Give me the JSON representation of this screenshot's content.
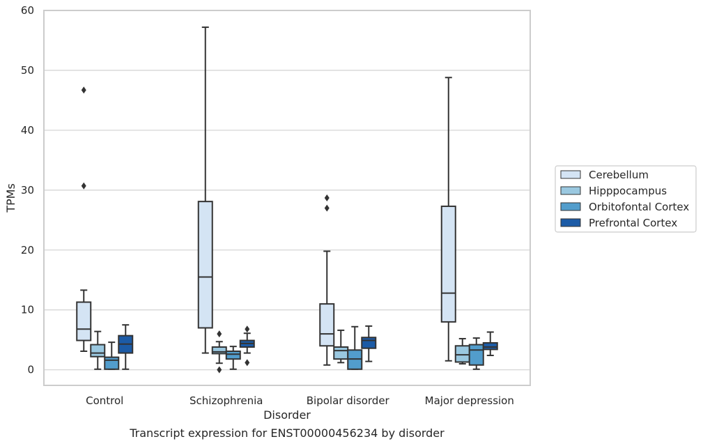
{
  "chart_data": {
    "type": "boxplot",
    "title": "Transcript expression for ENST00000456234 by disorder",
    "xlabel": "Disorder",
    "ylabel": "TPMs",
    "ylim": [
      -2.6,
      60
    ],
    "yticks": [
      0,
      10,
      20,
      30,
      40,
      50,
      60
    ],
    "grid": "horizontal",
    "legend_position": "right",
    "categories": [
      "Control",
      "Schizophrenia",
      "Bipolar disorder",
      "Major depression"
    ],
    "series": [
      {
        "name": "Cerebellum",
        "color": "#d4e4f4",
        "boxes": [
          {
            "whislo": 3.1,
            "q1": 4.9,
            "med": 6.8,
            "q3": 11.3,
            "whishi": 13.3,
            "fliers": [
              30.7,
              46.7
            ]
          },
          {
            "whislo": 2.8,
            "q1": 7.0,
            "med": 15.5,
            "q3": 28.1,
            "whishi": 57.2,
            "fliers": []
          },
          {
            "whislo": 0.8,
            "q1": 4.0,
            "med": 6.0,
            "q3": 11.0,
            "whishi": 19.8,
            "fliers": [
              27.0,
              28.7
            ]
          },
          {
            "whislo": 1.5,
            "q1": 8.0,
            "med": 12.8,
            "q3": 27.3,
            "whishi": 48.8,
            "fliers": []
          }
        ]
      },
      {
        "name": "Hipppocampus",
        "color": "#9ac8e0",
        "boxes": [
          {
            "whislo": 0.1,
            "q1": 2.2,
            "med": 2.8,
            "q3": 4.2,
            "whishi": 6.4,
            "fliers": []
          },
          {
            "whislo": 1.1,
            "q1": 2.7,
            "med": 3.0,
            "q3": 3.8,
            "whishi": 4.7,
            "fliers": [
              0.0,
              6.0
            ]
          },
          {
            "whislo": 1.2,
            "q1": 1.8,
            "med": 3.2,
            "q3": 3.8,
            "whishi": 6.6,
            "fliers": []
          },
          {
            "whislo": 1.0,
            "q1": 1.3,
            "med": 2.5,
            "q3": 4.0,
            "whishi": 5.2,
            "fliers": []
          }
        ]
      },
      {
        "name": "Orbitofontal Cortex",
        "color": "#529dcc",
        "boxes": [
          {
            "whislo": 0.1,
            "q1": 0.1,
            "med": 1.6,
            "q3": 2.1,
            "whishi": 4.6,
            "fliers": []
          },
          {
            "whislo": 0.1,
            "q1": 1.8,
            "med": 2.6,
            "q3": 3.1,
            "whishi": 3.9,
            "fliers": []
          },
          {
            "whislo": 0.1,
            "q1": 0.1,
            "med": 1.8,
            "q3": 3.3,
            "whishi": 7.2,
            "fliers": []
          },
          {
            "whislo": 0.1,
            "q1": 0.8,
            "med": 3.3,
            "q3": 4.2,
            "whishi": 5.3,
            "fliers": []
          }
        ]
      },
      {
        "name": "Prefrontal Cortex",
        "color": "#1c5ba6",
        "boxes": [
          {
            "whislo": 0.1,
            "q1": 2.8,
            "med": 4.3,
            "q3": 5.7,
            "whishi": 7.5,
            "fliers": []
          },
          {
            "whislo": 2.8,
            "q1": 3.8,
            "med": 4.4,
            "q3": 4.9,
            "whishi": 6.1,
            "fliers": [
              1.2,
              6.8
            ]
          },
          {
            "whislo": 1.4,
            "q1": 3.6,
            "med": 4.9,
            "q3": 5.4,
            "whishi": 7.3,
            "fliers": []
          },
          {
            "whislo": 2.4,
            "q1": 3.4,
            "med": 3.8,
            "q3": 4.5,
            "whishi": 6.3,
            "fliers": []
          }
        ]
      }
    ]
  }
}
